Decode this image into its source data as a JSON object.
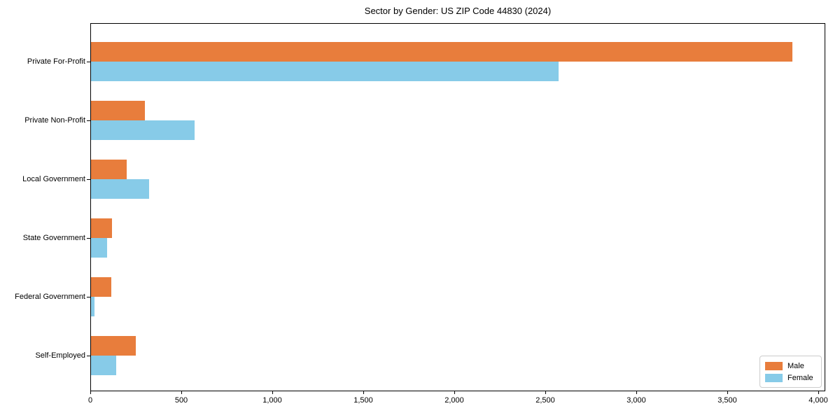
{
  "chart_data": {
    "type": "bar",
    "orientation": "horizontal",
    "title": "Sector by Gender: US ZIP Code 44830 (2024)",
    "categories": [
      "Private For-Profit",
      "Private Non-Profit",
      "Local Government",
      "State Government",
      "Federal Government",
      "Self-Employed"
    ],
    "series": [
      {
        "name": "Male",
        "color": "#e87d3c",
        "values": [
          3855,
          295,
          195,
          115,
          110,
          245
        ]
      },
      {
        "name": "Female",
        "color": "#87cbe8",
        "values": [
          2570,
          570,
          320,
          90,
          20,
          140
        ]
      }
    ],
    "xlabel": "",
    "ylabel": "",
    "xlim": [
      0,
      4040
    ],
    "xticks": [
      0,
      500,
      1000,
      1500,
      2000,
      2500,
      3000,
      3500,
      4000
    ],
    "xtick_labels": [
      "0",
      "500",
      "1,000",
      "1,500",
      "2,000",
      "2,500",
      "3,000",
      "3,500",
      "4,000"
    ],
    "grid": false,
    "legend_position": "lower right"
  }
}
